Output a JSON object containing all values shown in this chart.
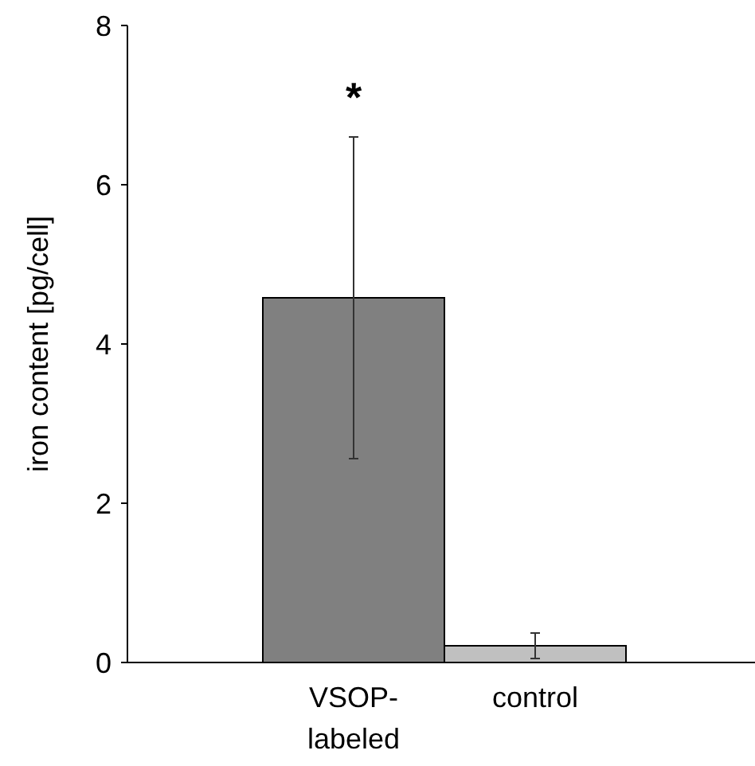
{
  "chart_data": {
    "type": "bar",
    "ylabel": "iron content [pg/cell]",
    "categories": [
      "VSOP-labeled",
      "control"
    ],
    "values": [
      4.58,
      0.21
    ],
    "colors": [
      "#808080",
      "#c0c0c0"
    ],
    "errors": [
      2.02,
      0.16
    ],
    "ylim": [
      0,
      8
    ],
    "yticks": [
      0,
      2,
      4,
      6,
      8
    ],
    "grid": false,
    "annotations": [
      "*"
    ]
  }
}
